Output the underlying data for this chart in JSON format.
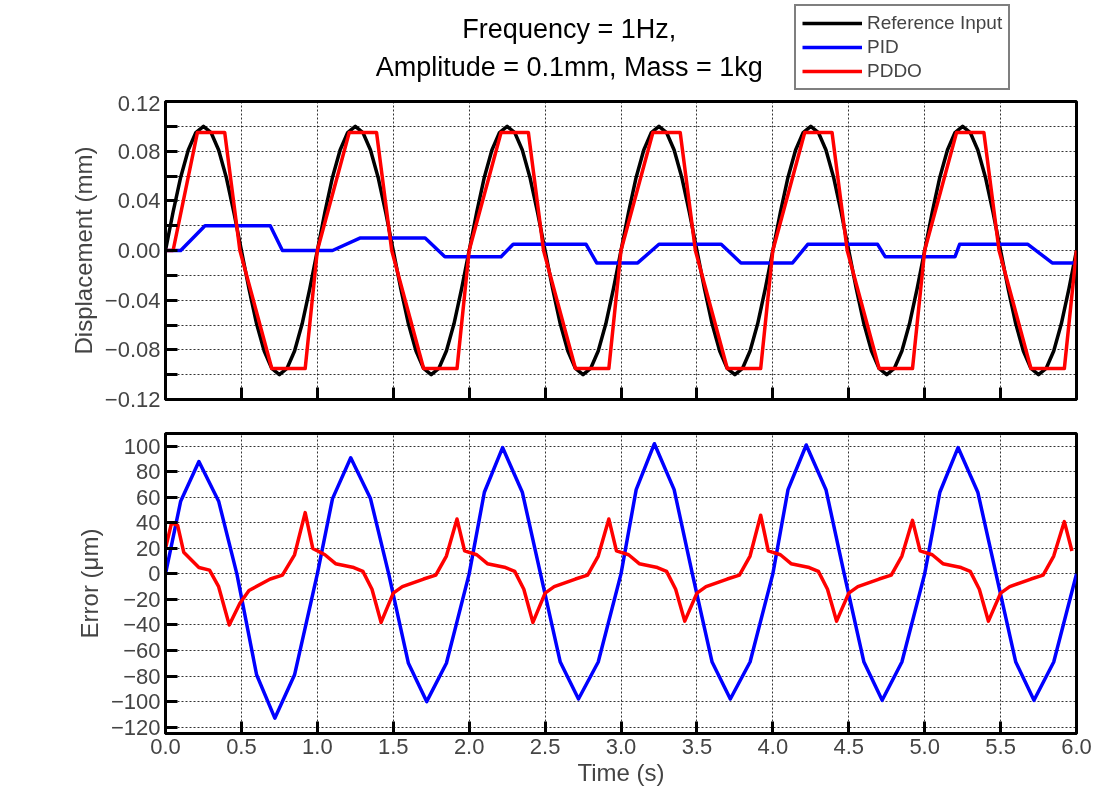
{
  "chart_data": [
    {
      "type": "line",
      "title": "Frequency = 1Hz,\nAmplitude = 0.1mm, Mass = 1kg",
      "ylabel": "Displacement (mm)",
      "xlim": [
        0,
        6
      ],
      "ylim": [
        -0.12,
        0.12
      ],
      "xticks": [
        {
          "value": 0,
          "label": null
        },
        {
          "value": 0.5,
          "label": null
        },
        {
          "value": 1,
          "label": null
        },
        {
          "value": 1.5,
          "label": null
        },
        {
          "value": 2,
          "label": null
        },
        {
          "value": 2.5,
          "label": null
        },
        {
          "value": 3,
          "label": null
        },
        {
          "value": 3.5,
          "label": null
        },
        {
          "value": 4,
          "label": null
        },
        {
          "value": 4.5,
          "label": null
        },
        {
          "value": 5,
          "label": null
        },
        {
          "value": 5.5,
          "label": null
        },
        {
          "value": 6,
          "label": null
        }
      ],
      "yticks": [
        -0.12,
        {
          "value": -0.1,
          "label": null
        },
        -0.08,
        {
          "value": -0.06,
          "label": null
        },
        -0.04,
        {
          "value": -0.02,
          "label": null
        },
        {
          "value": 0,
          "label": "0.00"
        },
        {
          "value": 0.02,
          "label": null
        },
        0.04,
        {
          "value": 0.06,
          "label": null
        },
        0.08,
        {
          "value": 0.1,
          "label": null
        },
        0.12
      ],
      "tick_labels": "y",
      "grid": true,
      "legend": "top right",
      "line_style": "solid",
      "series": [
        {
          "name": "Reference Input",
          "color": "#000000",
          "x": [
            0,
            0.05,
            0.1,
            0.15,
            0.2,
            0.25,
            0.3,
            0.35,
            0.4,
            0.45,
            0.5,
            0.55,
            0.6,
            0.65,
            0.7,
            0.75,
            0.8,
            0.85,
            0.9,
            0.95,
            1,
            1.05,
            1.1,
            1.15,
            1.2,
            1.25,
            1.3,
            1.35,
            1.4,
            1.45,
            1.5,
            1.55,
            1.6,
            1.65,
            1.7,
            1.75,
            1.8,
            1.85,
            1.9,
            1.95,
            2,
            2.05,
            2.1,
            2.15,
            2.2,
            2.25,
            2.3,
            2.35,
            2.4,
            2.45,
            2.5,
            2.55,
            2.6,
            2.65,
            2.7,
            2.75,
            2.8,
            2.85,
            2.9,
            2.95,
            3,
            3.05,
            3.1,
            3.15,
            3.2,
            3.25,
            3.3,
            3.35,
            3.4,
            3.45,
            3.5,
            3.55,
            3.6,
            3.65,
            3.7,
            3.75,
            3.8,
            3.85,
            3.9,
            3.95,
            4,
            4.05,
            4.1,
            4.15,
            4.2,
            4.25,
            4.3,
            4.35,
            4.4,
            4.45,
            4.5,
            4.55,
            4.6,
            4.65,
            4.7,
            4.75,
            4.8,
            4.85,
            4.9,
            4.95,
            5,
            5.05,
            5.1,
            5.15,
            5.2,
            5.25,
            5.3,
            5.35,
            5.4,
            5.45,
            5.5,
            5.55,
            5.6,
            5.65,
            5.7,
            5.75,
            5.8,
            5.85,
            5.9,
            5.95,
            6
          ],
          "values": [
            0,
            0.031,
            0.059,
            0.081,
            0.095,
            0.1,
            0.095,
            0.081,
            0.059,
            0.031,
            0,
            -0.031,
            -0.059,
            -0.081,
            -0.095,
            -0.1,
            -0.095,
            -0.081,
            -0.059,
            -0.031,
            0,
            0.031,
            0.059,
            0.081,
            0.095,
            0.1,
            0.095,
            0.081,
            0.059,
            0.031,
            0,
            -0.031,
            -0.059,
            -0.081,
            -0.095,
            -0.1,
            -0.095,
            -0.081,
            -0.059,
            -0.031,
            0,
            0.031,
            0.059,
            0.081,
            0.095,
            0.1,
            0.095,
            0.081,
            0.059,
            0.031,
            0,
            -0.031,
            -0.059,
            -0.081,
            -0.095,
            -0.1,
            -0.095,
            -0.081,
            -0.059,
            -0.031,
            0,
            0.031,
            0.059,
            0.081,
            0.095,
            0.1,
            0.095,
            0.081,
            0.059,
            0.031,
            0,
            -0.031,
            -0.059,
            -0.081,
            -0.095,
            -0.1,
            -0.095,
            -0.081,
            -0.059,
            -0.031,
            0,
            0.031,
            0.059,
            0.081,
            0.095,
            0.1,
            0.095,
            0.081,
            0.059,
            0.031,
            0,
            -0.031,
            -0.059,
            -0.081,
            -0.095,
            -0.1,
            -0.095,
            -0.081,
            -0.059,
            -0.031,
            0,
            0.031,
            0.059,
            0.081,
            0.095,
            0.1,
            0.095,
            0.081,
            0.059,
            0.031,
            0,
            -0.031,
            -0.059,
            -0.081,
            -0.095,
            -0.1,
            -0.095,
            -0.081,
            -0.059,
            -0.031,
            0
          ]
        },
        {
          "name": "PID",
          "color": "#0000ff",
          "x": [
            0,
            0.1,
            0.26,
            0.69,
            0.77,
            1.1,
            1.28,
            1.71,
            1.84,
            2.21,
            2.29,
            2.77,
            2.84,
            3.11,
            3.25,
            3.66,
            3.79,
            4.13,
            4.23,
            4.69,
            4.74,
            5.2,
            5.23,
            5.68,
            5.84,
            6
          ],
          "values": [
            0,
            0,
            0.02,
            0.02,
            0,
            0,
            0.01,
            0.01,
            -0.005,
            -0.005,
            0.005,
            0.005,
            -0.01,
            -0.01,
            0.005,
            0.005,
            -0.01,
            -0.01,
            0.005,
            0.005,
            -0.005,
            -0.005,
            0.005,
            0.005,
            -0.01,
            -0.01
          ]
        },
        {
          "name": "PDDO",
          "color": "#ff0000",
          "x": [
            0,
            0.05,
            0.21,
            0.39,
            0.49,
            0.7,
            0.92,
            1,
            1.21,
            1.39,
            1.49,
            1.7,
            1.92,
            2,
            2.21,
            2.39,
            2.49,
            2.7,
            2.92,
            3,
            3.21,
            3.39,
            3.49,
            3.7,
            3.92,
            4,
            4.21,
            4.39,
            4.49,
            4.7,
            4.92,
            5,
            5.21,
            5.39,
            5.49,
            5.7,
            5.92,
            6
          ],
          "values": [
            0,
            0,
            0.095,
            0.095,
            0,
            -0.095,
            -0.095,
            0,
            0.095,
            0.095,
            0,
            -0.095,
            -0.095,
            0,
            0.095,
            0.095,
            0,
            -0.095,
            -0.095,
            0,
            0.095,
            0.095,
            0,
            -0.095,
            -0.095,
            0,
            0.095,
            0.095,
            0,
            -0.095,
            -0.095,
            0,
            0.095,
            0.095,
            0,
            -0.095,
            -0.095,
            0
          ]
        }
      ]
    },
    {
      "type": "line",
      "xlabel": "Time (s)",
      "ylabel": "Error (μm)",
      "xlim": [
        0,
        6
      ],
      "ylim": [
        -125,
        110
      ],
      "xticks": [
        {
          "value": 0,
          "label": "0.0"
        },
        0.5,
        {
          "value": 1,
          "label": "1.0"
        },
        1.5,
        {
          "value": 2,
          "label": "2.0"
        },
        2.5,
        {
          "value": 3,
          "label": "3.0"
        },
        3.5,
        {
          "value": 4,
          "label": "4.0"
        },
        4.5,
        {
          "value": 5,
          "label": "5.0"
        },
        5.5,
        {
          "value": 6,
          "label": "6.0"
        }
      ],
      "yticks": [
        -120,
        -100,
        -80,
        -60,
        -40,
        -20,
        0,
        20,
        40,
        60,
        80,
        100
      ],
      "grid": true,
      "line_style": "solid",
      "series": [
        {
          "color": "#0000ff",
          "x": [
            0,
            0.1,
            0.22,
            0.35,
            0.47,
            0.6,
            0.72,
            0.85,
            1,
            1.1,
            1.22,
            1.35,
            1.47,
            1.6,
            1.72,
            1.85,
            2,
            2.1,
            2.22,
            2.35,
            2.47,
            2.6,
            2.72,
            2.85,
            3,
            3.1,
            3.22,
            3.35,
            3.47,
            3.6,
            3.72,
            3.85,
            4,
            4.1,
            4.22,
            4.35,
            4.47,
            4.6,
            4.72,
            4.85,
            5,
            5.1,
            5.22,
            5.35,
            5.47,
            5.6,
            5.72,
            5.85,
            6
          ],
          "values": [
            0,
            57,
            88,
            57,
            0,
            -79,
            -113,
            -79,
            0,
            59,
            91,
            59,
            0,
            -70,
            -100,
            -70,
            0,
            64,
            99,
            64,
            0,
            -69,
            -98,
            -69,
            0,
            66,
            102,
            66,
            0,
            -69,
            -98,
            -69,
            0,
            66,
            101,
            66,
            0,
            -69,
            -99,
            -69,
            0,
            64,
            99,
            64,
            0,
            -69,
            -99,
            -69,
            0
          ]
        },
        {
          "color": "#ff0000",
          "x": [
            0,
            0.04,
            0.08,
            0.12,
            0.22,
            0.29,
            0.35,
            0.42,
            0.49,
            0.55,
            0.69,
            0.77,
            0.85,
            0.92,
            0.97,
            1.05,
            1.12,
            1.24,
            1.3,
            1.36,
            1.42,
            1.5,
            1.56,
            1.7,
            1.78,
            1.85,
            1.92,
            1.97,
            2.05,
            2.12,
            2.24,
            2.3,
            2.36,
            2.42,
            2.5,
            2.56,
            2.7,
            2.78,
            2.85,
            2.92,
            2.97,
            3.05,
            3.12,
            3.24,
            3.3,
            3.36,
            3.42,
            3.5,
            3.56,
            3.7,
            3.78,
            3.85,
            3.92,
            3.97,
            4.05,
            4.12,
            4.24,
            4.3,
            4.36,
            4.42,
            4.5,
            4.56,
            4.7,
            4.78,
            4.85,
            4.92,
            4.97,
            5.05,
            5.12,
            5.24,
            5.3,
            5.36,
            5.42,
            5.5,
            5.56,
            5.7,
            5.78,
            5.85,
            5.92,
            5.97
          ],
          "values": [
            20,
            40,
            38,
            17,
            5,
            3,
            -10,
            -40,
            -23,
            -13,
            -4,
            -1,
            15,
            48,
            20,
            15,
            8,
            5,
            2,
            -12,
            -38,
            -15,
            -10,
            -4,
            -1,
            14,
            43,
            18,
            15,
            8,
            5,
            2,
            -12,
            -38,
            -15,
            -10,
            -4,
            -1,
            14,
            43,
            18,
            15,
            8,
            5,
            2,
            -12,
            -37,
            -15,
            -10,
            -4,
            -1,
            14,
            46,
            18,
            15,
            8,
            5,
            2,
            -12,
            -37,
            -15,
            -10,
            -4,
            -1,
            14,
            42,
            18,
            15,
            8,
            5,
            2,
            -12,
            -37,
            -15,
            -10,
            -4,
            -1,
            14,
            41,
            18
          ]
        }
      ]
    }
  ]
}
